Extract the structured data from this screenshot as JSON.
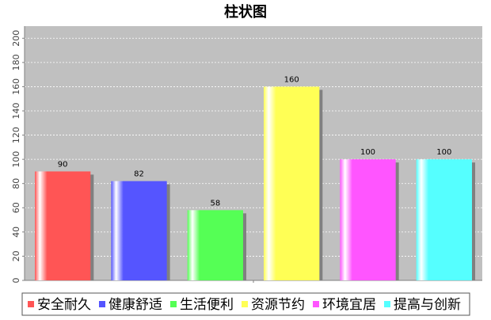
{
  "chart_data": {
    "type": "bar",
    "title": "柱状图",
    "xlabel": "",
    "ylabel": "",
    "categories": [
      "安全耐久",
      "健康舒适",
      "生活便利",
      "资源节约",
      "环境宜居",
      "提高与创新"
    ],
    "values": [
      90,
      82,
      58,
      160,
      100,
      100
    ],
    "ylim": [
      0,
      210
    ],
    "yticks": [
      0,
      20,
      40,
      60,
      80,
      100,
      120,
      140,
      160,
      180,
      200
    ],
    "grid": true,
    "legend_placement": "bottom",
    "colors": [
      "#ff5555",
      "#5555ff",
      "#55ff55",
      "#ffff55",
      "#ff55ff",
      "#55ffff"
    ],
    "plot_background": "#c0c0c0"
  }
}
